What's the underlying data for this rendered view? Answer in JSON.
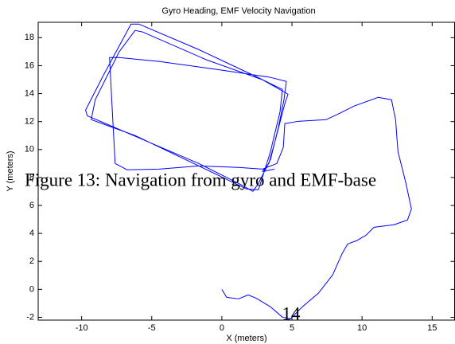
{
  "chart_data": {
    "type": "line",
    "title": "Gyro Heading, EMF Velocity Navigation",
    "x_label": "X (meters)",
    "y_label": "Y (meters)",
    "color": "#0000ff",
    "x": [
      0,
      0.34,
      1.19,
      1.88,
      2.44,
      3.47,
      4.32,
      4.89,
      5.74,
      6.88,
      7.9,
      8.58,
      8.98,
      9.6,
      10.28,
      10.85,
      12.27,
      13.24,
      13.52,
      13.13,
      12.56,
      12.39,
      12.1,
      11.14,
      9.43,
      8.3,
      7.44,
      5.45,
      4.49,
      4.38,
      3.92,
      2.9,
      1.19,
      -1.65,
      -4.49,
      -6.76,
      -7.61,
      -7.78,
      -8.01,
      -7.33,
      -4.49,
      0.06,
      3.47,
      4.6,
      4.43,
      4.03,
      3.47,
      2.61,
      2.22,
      1.19,
      -1.65,
      -5.63,
      -9.6,
      -9.72,
      -8.47,
      -6.48,
      -5.91,
      -1.65,
      2.33,
      4.32,
      4.15,
      3.47,
      2.61,
      1.76,
      -1.65,
      -6.19,
      -9.32,
      -9.03,
      -7.33,
      -6.19,
      -5.63,
      -1.08,
      2.9,
      4.72,
      4.49,
      3.75,
      3.35,
      2.9,
      3.75
    ],
    "values": [
      0,
      -0.57,
      -0.68,
      -0.4,
      -0.63,
      -1.25,
      -1.99,
      -2.1,
      -1.25,
      -0.28,
      1.03,
      2.56,
      3.25,
      3.48,
      3.87,
      4.44,
      4.62,
      4.96,
      5.75,
      7.58,
      9.86,
      12.14,
      13.56,
      13.73,
      13.11,
      12.54,
      12.14,
      12.02,
      11.85,
      10.14,
      9.0,
      8.6,
      8.72,
      8.83,
      8.6,
      8.55,
      9.0,
      12.14,
      16.58,
      16.58,
      16.3,
      15.67,
      15.16,
      14.87,
      13.56,
      11.57,
      9.29,
      7.58,
      7.01,
      7.58,
      9.0,
      10.71,
      12.42,
      12.82,
      15.27,
      18.97,
      18.97,
      17.15,
      15.27,
      14.3,
      12.71,
      9.86,
      7.12,
      7.18,
      8.83,
      11.0,
      12.14,
      13.56,
      16.98,
      18.52,
      18.4,
      16.41,
      14.99,
      13.96,
      13.28,
      10.43,
      9.0,
      8.43,
      8.6
    ],
    "xlim": [
      -13.1,
      16.6
    ],
    "ylim": [
      -2.2,
      19.1
    ],
    "xticks": [
      -10,
      -5,
      0,
      5,
      10,
      15
    ],
    "yticks": [
      -2,
      0,
      2,
      4,
      6,
      8,
      10,
      12,
      14,
      16,
      18
    ]
  },
  "overlay": {
    "caption": "Figure 13: Navigation from gyro and EMF-base",
    "page_number": "14"
  }
}
